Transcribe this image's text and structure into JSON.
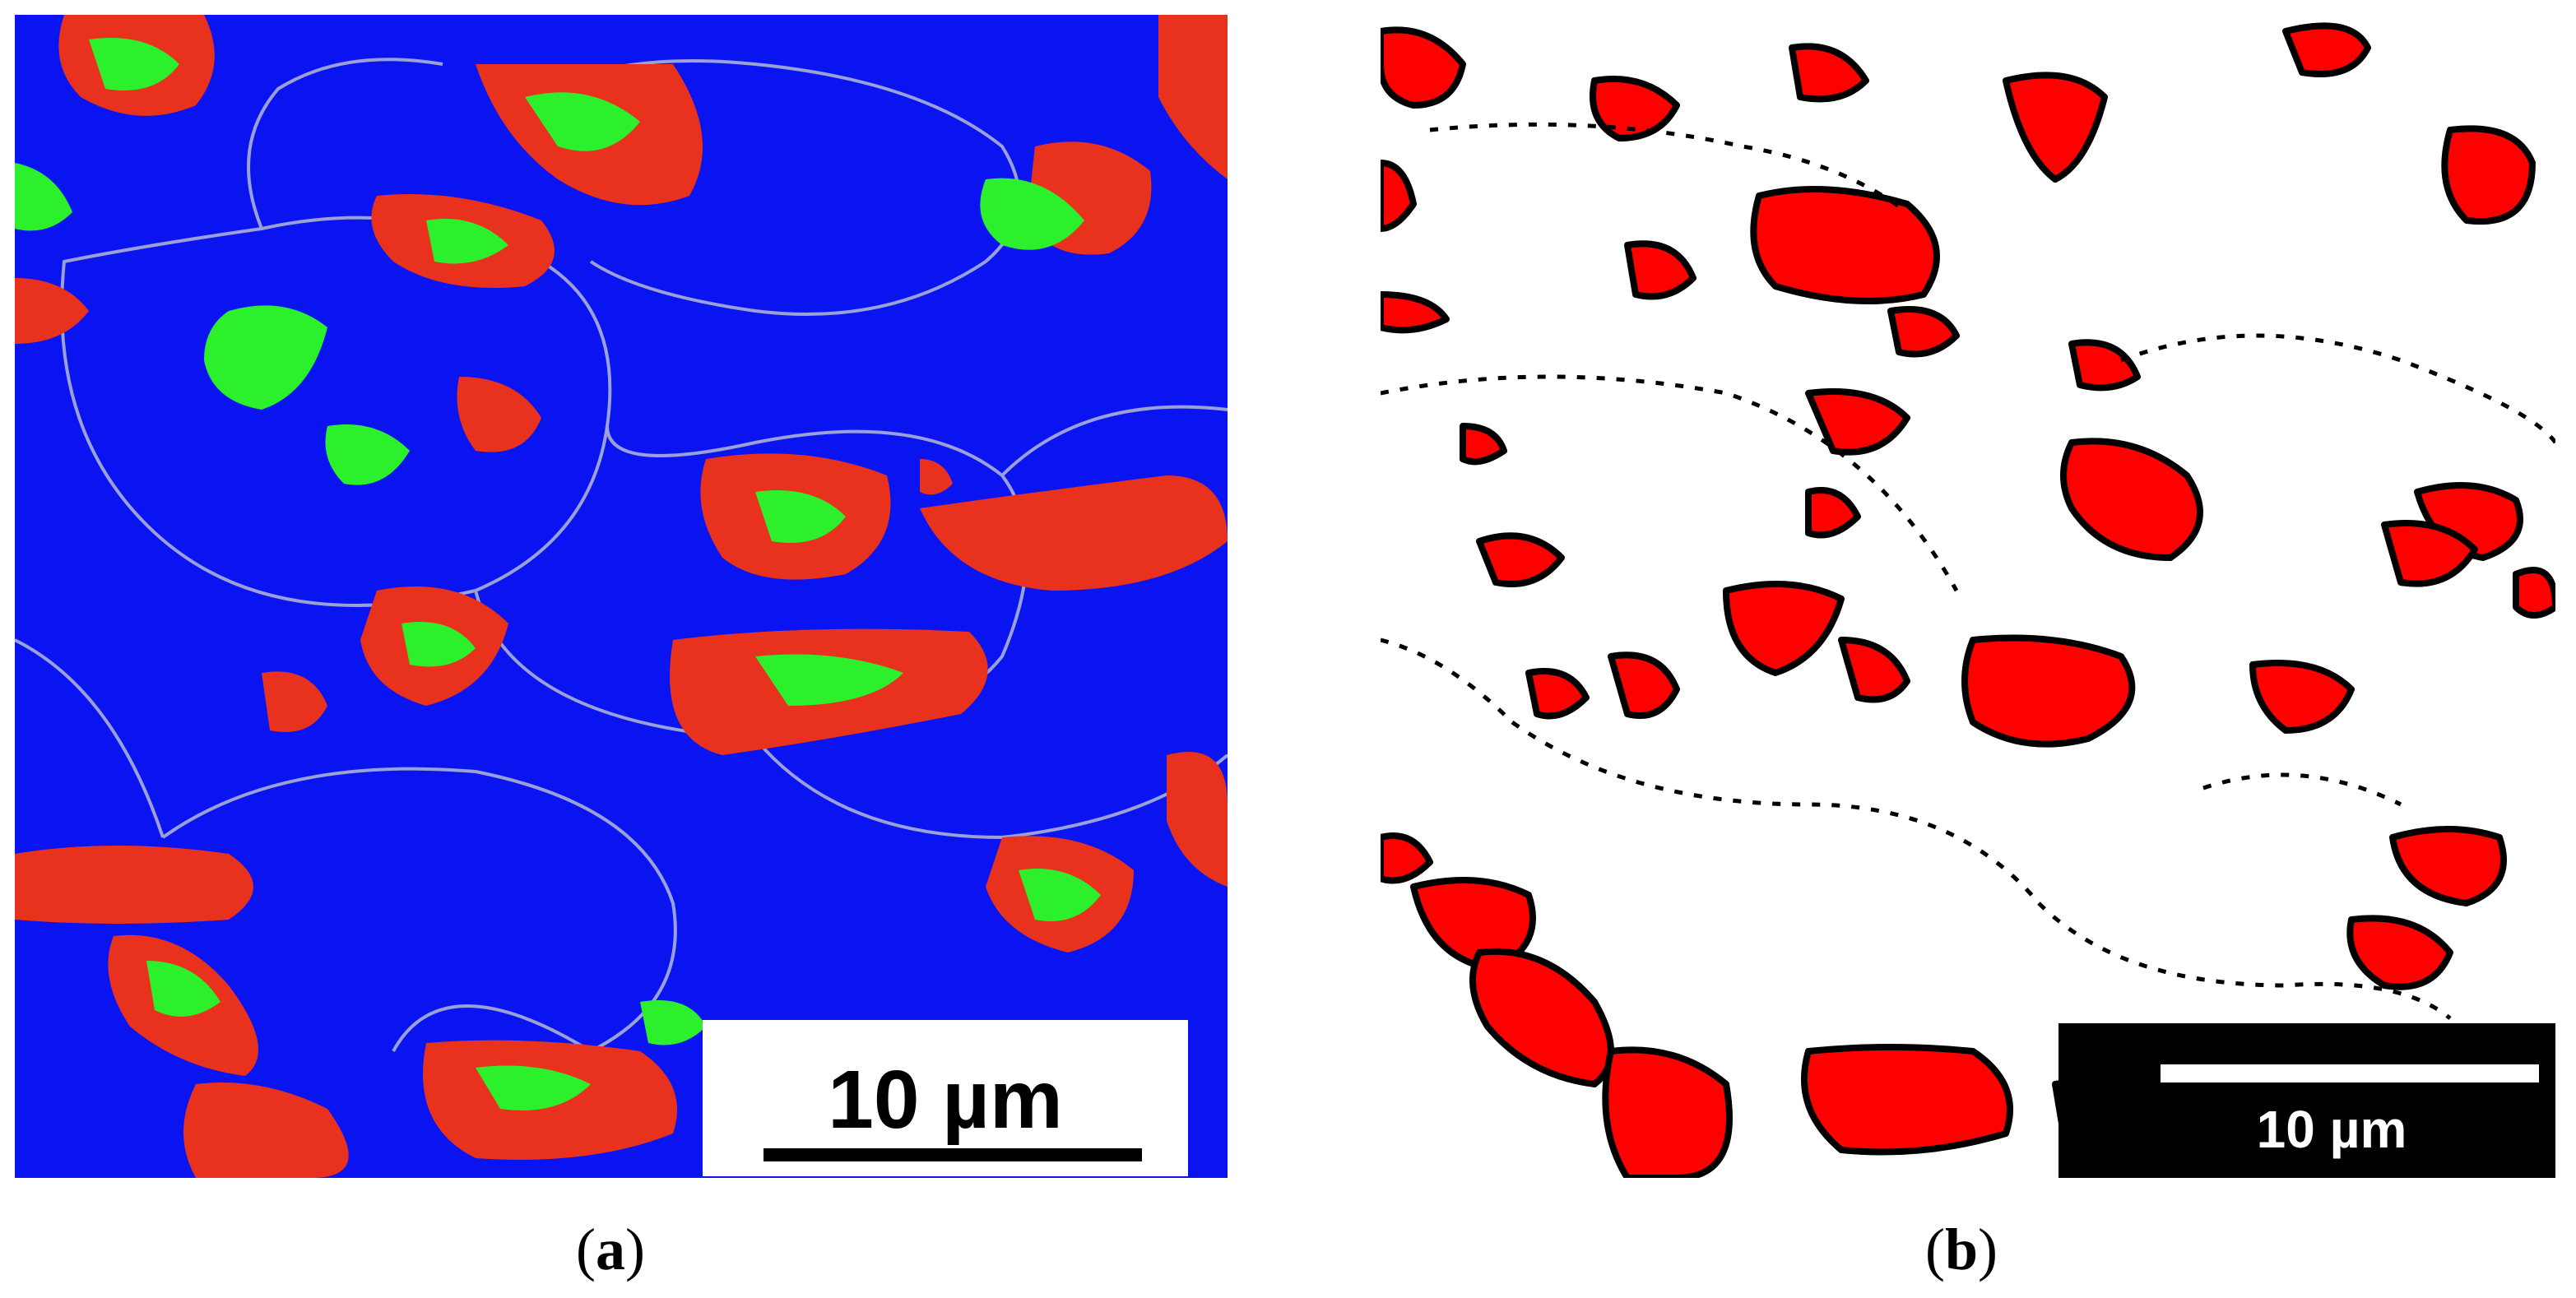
{
  "panels": [
    {
      "id": "a",
      "caption_open": "(",
      "caption_letter": "a",
      "caption_close": ")",
      "scale_bar_label": "10 µm"
    },
    {
      "id": "b",
      "caption_open": "(",
      "caption_letter": "b",
      "caption_close": ")",
      "scale_bar_label": "10 µm"
    }
  ],
  "colors": {
    "panel_a_matrix": "#0a14f0",
    "panel_a_phase_red": "#e8321e",
    "panel_a_phase_green": "#2cf02c",
    "panel_a_boundaries": "#9aa0d8",
    "panel_b_background": "#ffffff",
    "panel_b_phase": "#ff0000",
    "panel_b_boundaries": "#000000"
  }
}
